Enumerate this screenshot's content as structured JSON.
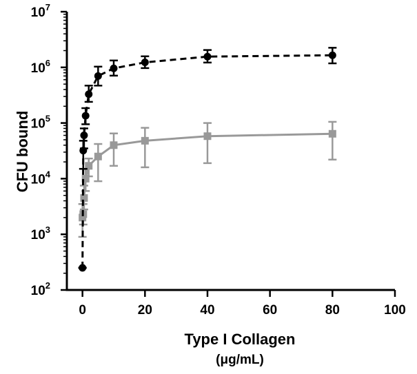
{
  "chart_data": {
    "type": "line",
    "title": "",
    "xlabel": "Type I Collagen",
    "xunit": "(μg/mL)",
    "ylabel": "CFU bound",
    "xlim": [
      -5,
      100
    ],
    "ylim": [
      100,
      10000000
    ],
    "y_scale": "log",
    "x_ticks": [
      "0",
      "20",
      "40",
      "60",
      "80",
      "100"
    ],
    "y_ticks": [
      {
        "base": "10",
        "exp": "2"
      },
      {
        "base": "10",
        "exp": "3"
      },
      {
        "base": "10",
        "exp": "4"
      },
      {
        "base": "10",
        "exp": "5"
      },
      {
        "base": "10",
        "exp": "6"
      },
      {
        "base": "10",
        "exp": "7"
      }
    ],
    "grid": false,
    "legend": "none",
    "series": [
      {
        "color": "#000000",
        "line_style": "dashed",
        "marker": "circle",
        "x": [
          0,
          0.25,
          0.5,
          1,
          2,
          5,
          10,
          20,
          40,
          80
        ],
        "y": [
          250,
          32000,
          60000,
          135000,
          330000,
          700000,
          960000,
          1230000,
          1560000,
          1650000
        ],
        "err_low": [
          250,
          15000,
          35000,
          95000,
          240000,
          470000,
          710000,
          970000,
          1220000,
          1180000
        ],
        "err_high": [
          250,
          48000,
          80000,
          185000,
          470000,
          1030000,
          1330000,
          1580000,
          2050000,
          2250000
        ]
      },
      {
        "color": "#999999",
        "line_style": "solid",
        "marker": "square",
        "x": [
          0,
          0.25,
          0.5,
          1,
          2,
          5,
          10,
          20,
          40,
          80
        ],
        "y": [
          2000,
          2300,
          4500,
          10000,
          17000,
          25000,
          40000,
          48000,
          58000,
          64000
        ],
        "err_low": [
          900,
          1500,
          2800,
          6000,
          11000,
          9000,
          17000,
          16000,
          19000,
          22000
        ],
        "err_high": [
          3500,
          3500,
          7500,
          15000,
          23000,
          42000,
          65000,
          82000,
          100000,
          105000
        ]
      }
    ]
  }
}
